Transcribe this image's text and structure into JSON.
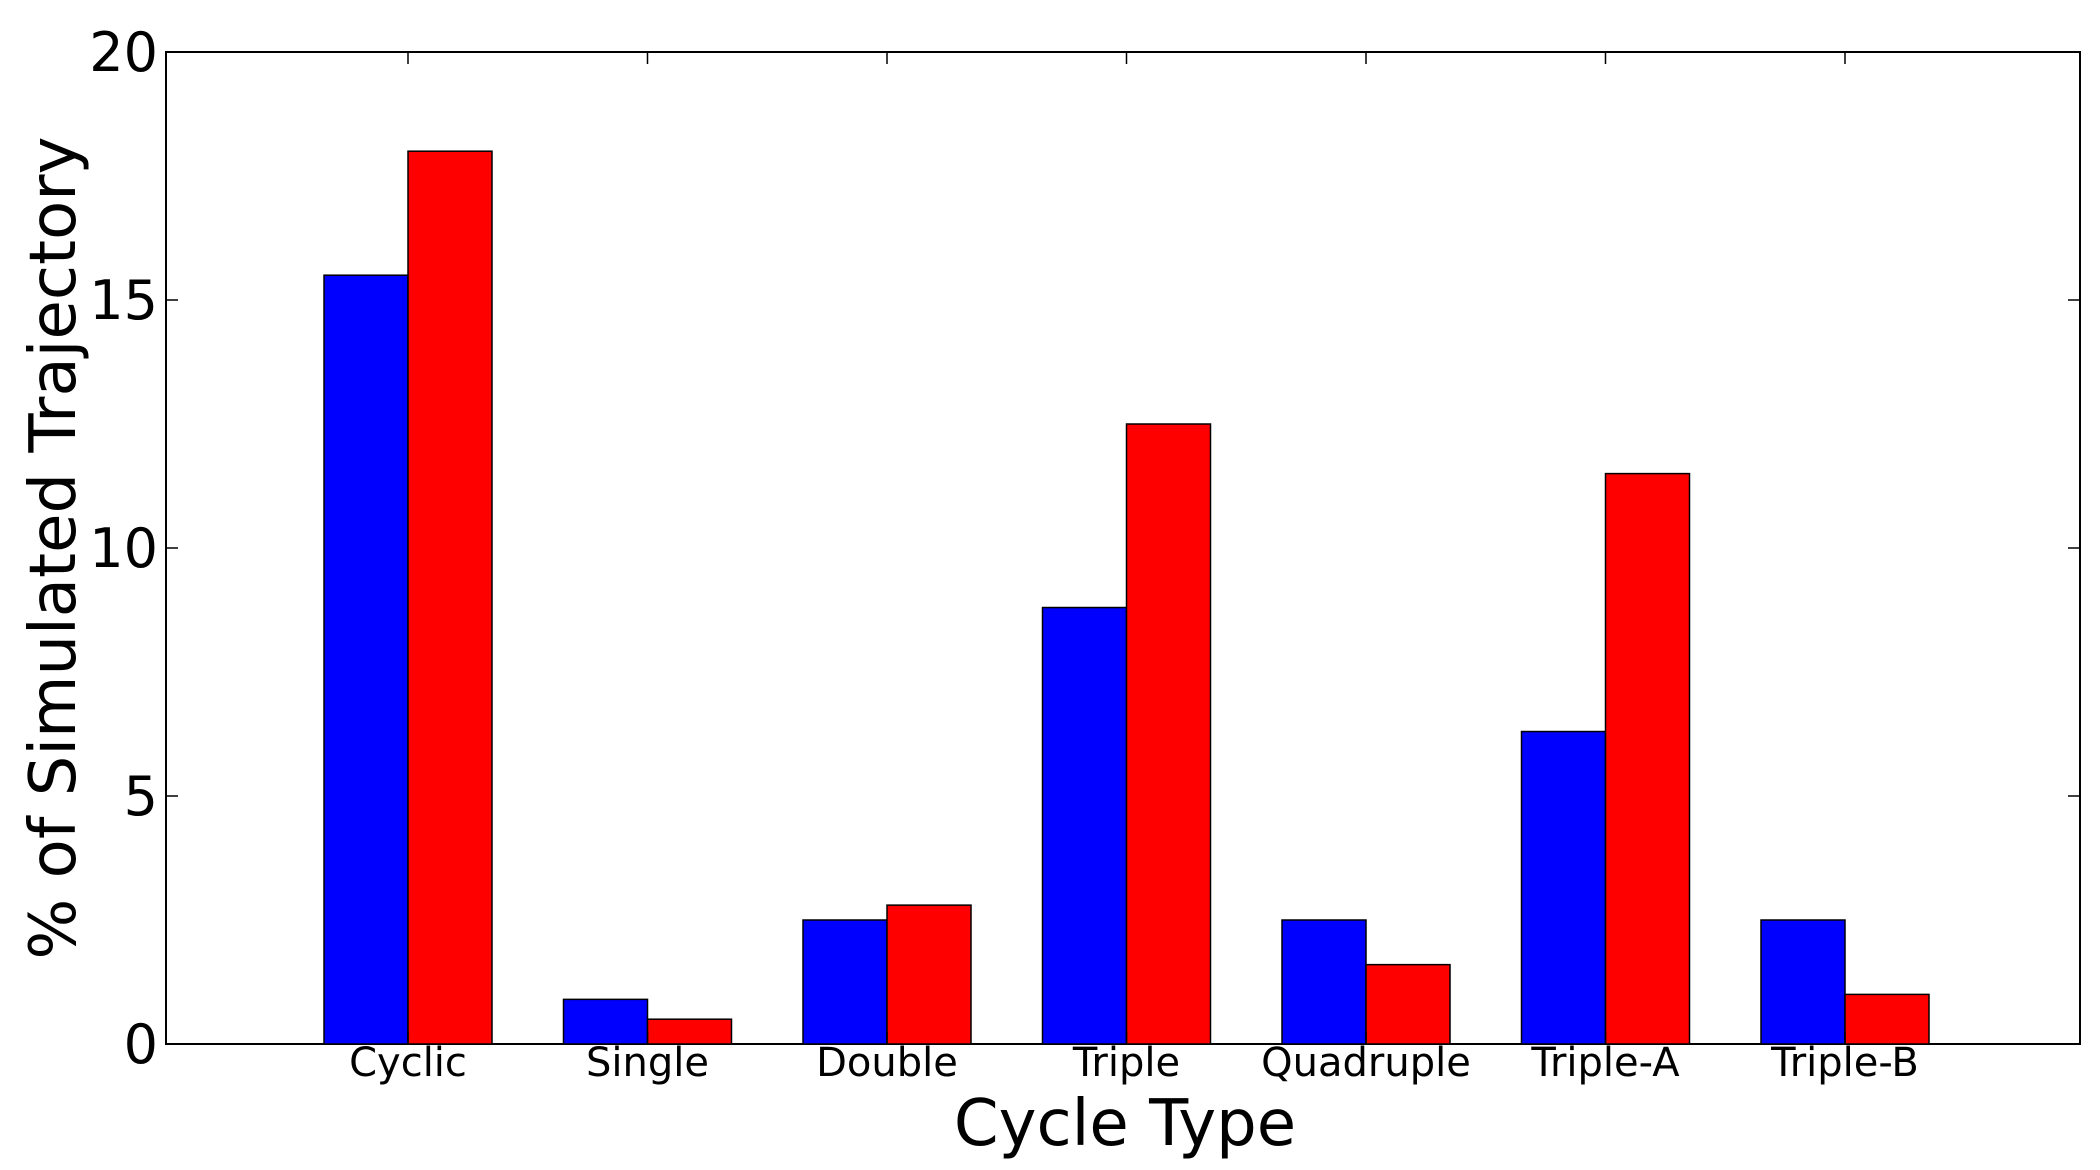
{
  "chart_data": {
    "type": "bar",
    "title": "",
    "xlabel": "Cycle Type",
    "ylabel": "% of Simulated Trajectory",
    "categories": [
      "Cyclic",
      "Single",
      "Double",
      "Triple",
      "Quadruple",
      "Triple-A",
      "Triple-B"
    ],
    "series": [
      {
        "color": "#0000ff",
        "values": [
          15.5,
          0.9,
          2.5,
          8.8,
          2.5,
          6.3,
          2.5
        ]
      },
      {
        "color": "#ff0000",
        "values": [
          18.0,
          0.5,
          2.8,
          12.5,
          1.6,
          11.5,
          1.0
        ]
      }
    ],
    "ylim": [
      0,
      20
    ],
    "yticks": [
      0,
      5,
      10,
      15,
      20
    ],
    "grid": false,
    "legend": "none"
  }
}
